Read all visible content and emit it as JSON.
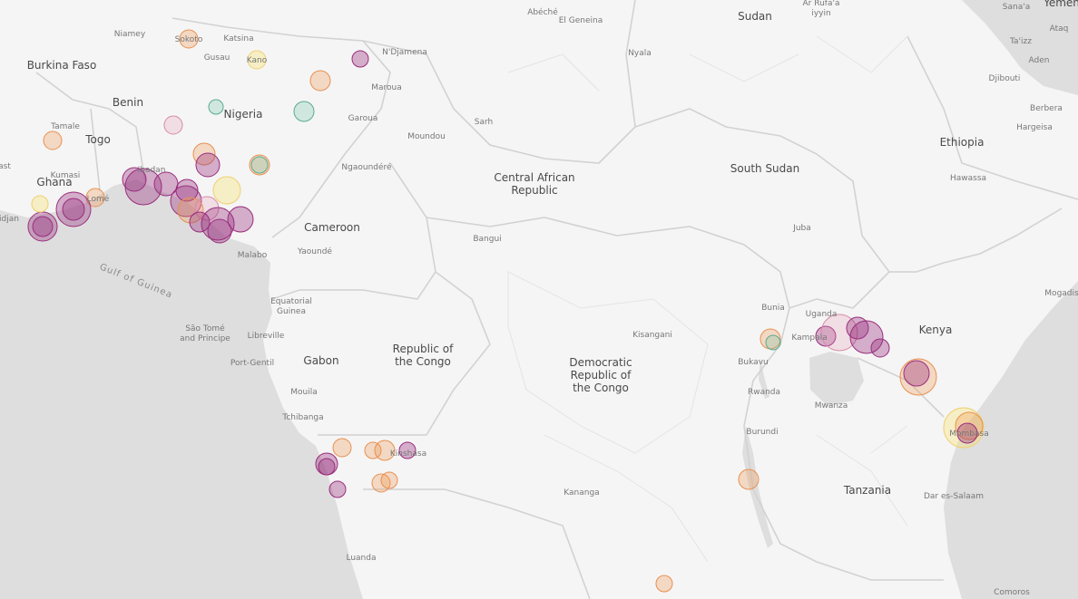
{
  "labels": [
    [
      "Sudan"
    ],
    [
      "Abéché"
    ],
    [
      "El Geneina"
    ],
    [
      "Ar Rufa'a",
      "iyyin"
    ],
    [
      "Yemen"
    ],
    [
      "Sana'a"
    ],
    [
      "Niamey"
    ],
    [
      "Sokoto"
    ],
    [
      "Katsina"
    ],
    [
      "N'Djamena"
    ],
    [
      "Ta'izz"
    ],
    [
      "Ataq"
    ],
    [
      "Burkina Faso"
    ],
    [
      "Gusau"
    ],
    [
      "Kano"
    ],
    [
      "Nyala"
    ],
    [
      "Aden"
    ],
    [
      "Djibouti"
    ],
    [
      "Maroua"
    ],
    [
      "Benin"
    ],
    [
      "Nigeria"
    ],
    [
      "Garoua"
    ],
    [
      "Sarh"
    ],
    [
      "Berbera"
    ],
    [
      "Tamale"
    ],
    [
      "Hargeisa"
    ],
    [
      "Moundou"
    ],
    [
      "Togo"
    ],
    [
      "Ethiopia"
    ],
    [
      "ast"
    ],
    [
      "Ngaoundéré"
    ],
    [
      "Central African",
      "Republic"
    ],
    [
      "South Sudan"
    ],
    [
      "Ghana"
    ],
    [
      "Hawassa"
    ],
    [
      "Cameroon"
    ],
    [
      "Juba"
    ],
    [
      "Bangui"
    ],
    [
      "idjan"
    ],
    [
      "Yaoundé"
    ],
    [
      "Malabo"
    ],
    [
      "Gulf of Guinea"
    ],
    [
      "Equatorial",
      "Guinea"
    ],
    [
      "Mogadis"
    ],
    [
      "Bunia"
    ],
    [
      "Uganda"
    ],
    [
      "Kenya"
    ],
    [
      "São Tomé",
      "and Principe"
    ],
    [
      "Libreville"
    ],
    [
      "Kisangani"
    ],
    [
      "Republic of",
      "the Congo"
    ],
    [
      "Gabon"
    ],
    [
      "Port-Gentil"
    ],
    [
      "Democratic",
      "Republic of",
      "the Congo"
    ],
    [
      "Mouila"
    ],
    [
      "Rwanda"
    ],
    [
      "Mwanza"
    ],
    [
      "Burundi"
    ],
    [
      "Tchibanga"
    ],
    [
      "Kinshasa"
    ],
    [
      "Kananga"
    ],
    [
      "Tanzania"
    ],
    [
      "Dar es-Salaam"
    ],
    [
      "Luanda"
    ],
    [
      "Comoros"
    ],
    [
      "Kumasi"
    ],
    [
      "Lomé"
    ],
    [
      "Ibadan"
    ],
    [
      "Mombasa"
    ],
    [
      "Bukavu"
    ],
    [
      "Kampala"
    ]
  ]
}
